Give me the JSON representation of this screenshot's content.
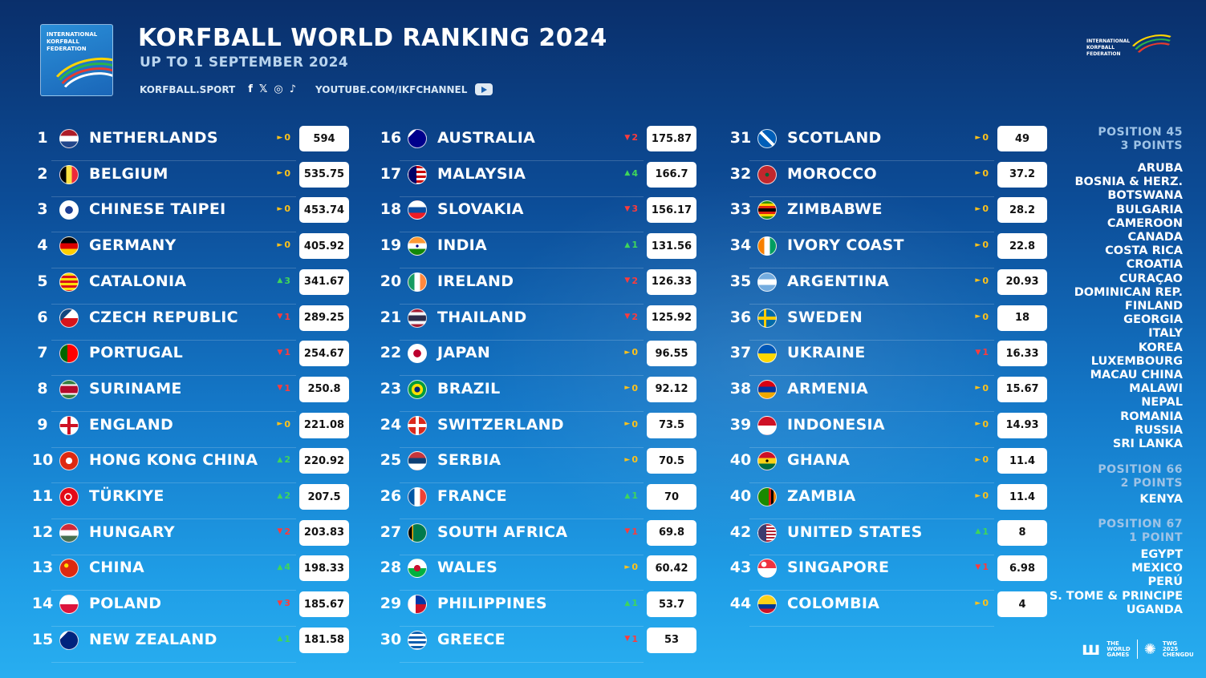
{
  "header": {
    "title": "KORFBALL WORLD RANKING 2024",
    "subtitle": "UP TO 1 SEPTEMBER 2024",
    "website": "KORFBALL.SPORT",
    "youtube": "YOUTUBE.COM/IKFCHANNEL",
    "social_icons": [
      "facebook-icon",
      "x-icon",
      "instagram-icon",
      "tiktok-icon",
      "youtube-icon"
    ]
  },
  "logo_text": "INTERNATIONAL\nKORFBALL\nFEDERATION",
  "colors": {
    "up": "#3fd65a",
    "down": "#ff3b3b",
    "same": "#ffc21a"
  },
  "rankings": [
    {
      "rank": "1",
      "country": "NETHERLANDS",
      "dir": "same",
      "change": "0",
      "points": "594",
      "flag": "netherlands"
    },
    {
      "rank": "2",
      "country": "BELGIUM",
      "dir": "same",
      "change": "0",
      "points": "535.75",
      "flag": "belgium"
    },
    {
      "rank": "3",
      "country": "CHINESE TAIPEI",
      "dir": "same",
      "change": "0",
      "points": "453.74",
      "flag": "chinese-taipei"
    },
    {
      "rank": "4",
      "country": "GERMANY",
      "dir": "same",
      "change": "0",
      "points": "405.92",
      "flag": "germany"
    },
    {
      "rank": "5",
      "country": "CATALONIA",
      "dir": "up",
      "change": "3",
      "points": "341.67",
      "flag": "catalonia"
    },
    {
      "rank": "6",
      "country": "CZECH REPUBLIC",
      "dir": "down",
      "change": "1",
      "points": "289.25",
      "flag": "czech-republic"
    },
    {
      "rank": "7",
      "country": "PORTUGAL",
      "dir": "down",
      "change": "1",
      "points": "254.67",
      "flag": "portugal"
    },
    {
      "rank": "8",
      "country": "SURINAME",
      "dir": "down",
      "change": "1",
      "points": "250.8",
      "flag": "suriname"
    },
    {
      "rank": "9",
      "country": "ENGLAND",
      "dir": "same",
      "change": "0",
      "points": "221.08",
      "flag": "england"
    },
    {
      "rank": "10",
      "country": "HONG KONG CHINA",
      "dir": "up",
      "change": "2",
      "points": "220.92",
      "flag": "hong-kong"
    },
    {
      "rank": "11",
      "country": "TÜRKIYE",
      "dir": "up",
      "change": "2",
      "points": "207.5",
      "flag": "turkiye"
    },
    {
      "rank": "12",
      "country": "HUNGARY",
      "dir": "down",
      "change": "2",
      "points": "203.83",
      "flag": "hungary"
    },
    {
      "rank": "13",
      "country": "CHINA",
      "dir": "up",
      "change": "4",
      "points": "198.33",
      "flag": "china"
    },
    {
      "rank": "14",
      "country": "POLAND",
      "dir": "down",
      "change": "3",
      "points": "185.67",
      "flag": "poland"
    },
    {
      "rank": "15",
      "country": "NEW ZEALAND",
      "dir": "up",
      "change": "1",
      "points": "181.58",
      "flag": "new-zealand"
    },
    {
      "rank": "16",
      "country": "AUSTRALIA",
      "dir": "down",
      "change": "2",
      "points": "175.87",
      "flag": "australia"
    },
    {
      "rank": "17",
      "country": "MALAYSIA",
      "dir": "up",
      "change": "4",
      "points": "166.7",
      "flag": "malaysia"
    },
    {
      "rank": "18",
      "country": "SLOVAKIA",
      "dir": "down",
      "change": "3",
      "points": "156.17",
      "flag": "slovakia"
    },
    {
      "rank": "19",
      "country": "INDIA",
      "dir": "up",
      "change": "1",
      "points": "131.56",
      "flag": "india"
    },
    {
      "rank": "20",
      "country": "IRELAND",
      "dir": "down",
      "change": "2",
      "points": "126.33",
      "flag": "ireland"
    },
    {
      "rank": "21",
      "country": "THAILAND",
      "dir": "down",
      "change": "2",
      "points": "125.92",
      "flag": "thailand"
    },
    {
      "rank": "22",
      "country": "JAPAN",
      "dir": "same",
      "change": "0",
      "points": "96.55",
      "flag": "japan"
    },
    {
      "rank": "23",
      "country": "BRAZIL",
      "dir": "same",
      "change": "0",
      "points": "92.12",
      "flag": "brazil"
    },
    {
      "rank": "24",
      "country": "SWITZERLAND",
      "dir": "same",
      "change": "0",
      "points": "73.5",
      "flag": "switzerland"
    },
    {
      "rank": "25",
      "country": "SERBIA",
      "dir": "same",
      "change": "0",
      "points": "70.5",
      "flag": "serbia"
    },
    {
      "rank": "26",
      "country": "FRANCE",
      "dir": "up",
      "change": "1",
      "points": "70",
      "flag": "france"
    },
    {
      "rank": "27",
      "country": "SOUTH AFRICA",
      "dir": "down",
      "change": "1",
      "points": "69.8",
      "flag": "south-africa"
    },
    {
      "rank": "28",
      "country": "WALES",
      "dir": "same",
      "change": "0",
      "points": "60.42",
      "flag": "wales"
    },
    {
      "rank": "29",
      "country": "PHILIPPINES",
      "dir": "up",
      "change": "1",
      "points": "53.7",
      "flag": "philippines"
    },
    {
      "rank": "30",
      "country": "GREECE",
      "dir": "down",
      "change": "1",
      "points": "53",
      "flag": "greece"
    },
    {
      "rank": "31",
      "country": "SCOTLAND",
      "dir": "same",
      "change": "0",
      "points": "49",
      "flag": "scotland"
    },
    {
      "rank": "32",
      "country": "MOROCCO",
      "dir": "same",
      "change": "0",
      "points": "37.2",
      "flag": "morocco"
    },
    {
      "rank": "33",
      "country": "ZIMBABWE",
      "dir": "same",
      "change": "0",
      "points": "28.2",
      "flag": "zimbabwe"
    },
    {
      "rank": "34",
      "country": "IVORY COAST",
      "dir": "same",
      "change": "0",
      "points": "22.8",
      "flag": "ivory-coast"
    },
    {
      "rank": "35",
      "country": "ARGENTINA",
      "dir": "same",
      "change": "0",
      "points": "20.93",
      "flag": "argentina"
    },
    {
      "rank": "36",
      "country": "SWEDEN",
      "dir": "same",
      "change": "0",
      "points": "18",
      "flag": "sweden"
    },
    {
      "rank": "37",
      "country": "UKRAINE",
      "dir": "down",
      "change": "1",
      "points": "16.33",
      "flag": "ukraine"
    },
    {
      "rank": "38",
      "country": "ARMENIA",
      "dir": "same",
      "change": "0",
      "points": "15.67",
      "flag": "armenia"
    },
    {
      "rank": "39",
      "country": "INDONESIA",
      "dir": "same",
      "change": "0",
      "points": "14.93",
      "flag": "indonesia"
    },
    {
      "rank": "40",
      "country": "GHANA",
      "dir": "same",
      "change": "0",
      "points": "11.4",
      "flag": "ghana"
    },
    {
      "rank": "40",
      "country": "ZAMBIA",
      "dir": "same",
      "change": "0",
      "points": "11.4",
      "flag": "zambia"
    },
    {
      "rank": "42",
      "country": "UNITED STATES",
      "dir": "up",
      "change": "1",
      "points": "8",
      "flag": "united-states"
    },
    {
      "rank": "43",
      "country": "SINGAPORE",
      "dir": "down",
      "change": "1",
      "points": "6.98",
      "flag": "singapore"
    },
    {
      "rank": "44",
      "country": "COLOMBIA",
      "dir": "same",
      "change": "0",
      "points": "4",
      "flag": "colombia"
    }
  ],
  "side_groups": [
    {
      "position": "POSITION 45",
      "points": "3 POINTS",
      "countries": [
        "ARUBA",
        "BOSNIA & HERZ.",
        "BOTSWANA",
        "BULGARIA",
        "CAMEROON",
        "CANADA",
        "COSTA RICA",
        "CROATIA",
        "CURAÇAO",
        "DOMINICAN REP.",
        "FINLAND",
        "GEORGIA",
        "ITALY",
        "KOREA",
        "LUXEMBOURG",
        "MACAU CHINA",
        "MALAWI",
        "NEPAL",
        "ROMANIA",
        "RUSSIA",
        "SRI LANKA"
      ]
    },
    {
      "position": "POSITION 66",
      "points": "2 POINTS",
      "countries": [
        "KENYA"
      ]
    },
    {
      "position": "POSITION 67",
      "points": "1 POINT",
      "countries": [
        "EGYPT",
        "MEXICO",
        "PERÚ",
        "S. TOME & PRINCIPE",
        "UGANDA"
      ]
    }
  ],
  "footer": {
    "twg_text": "THE\nWORLD\nGAMES",
    "chengdu_text": "TWG\n2025\nCHENGDU"
  }
}
